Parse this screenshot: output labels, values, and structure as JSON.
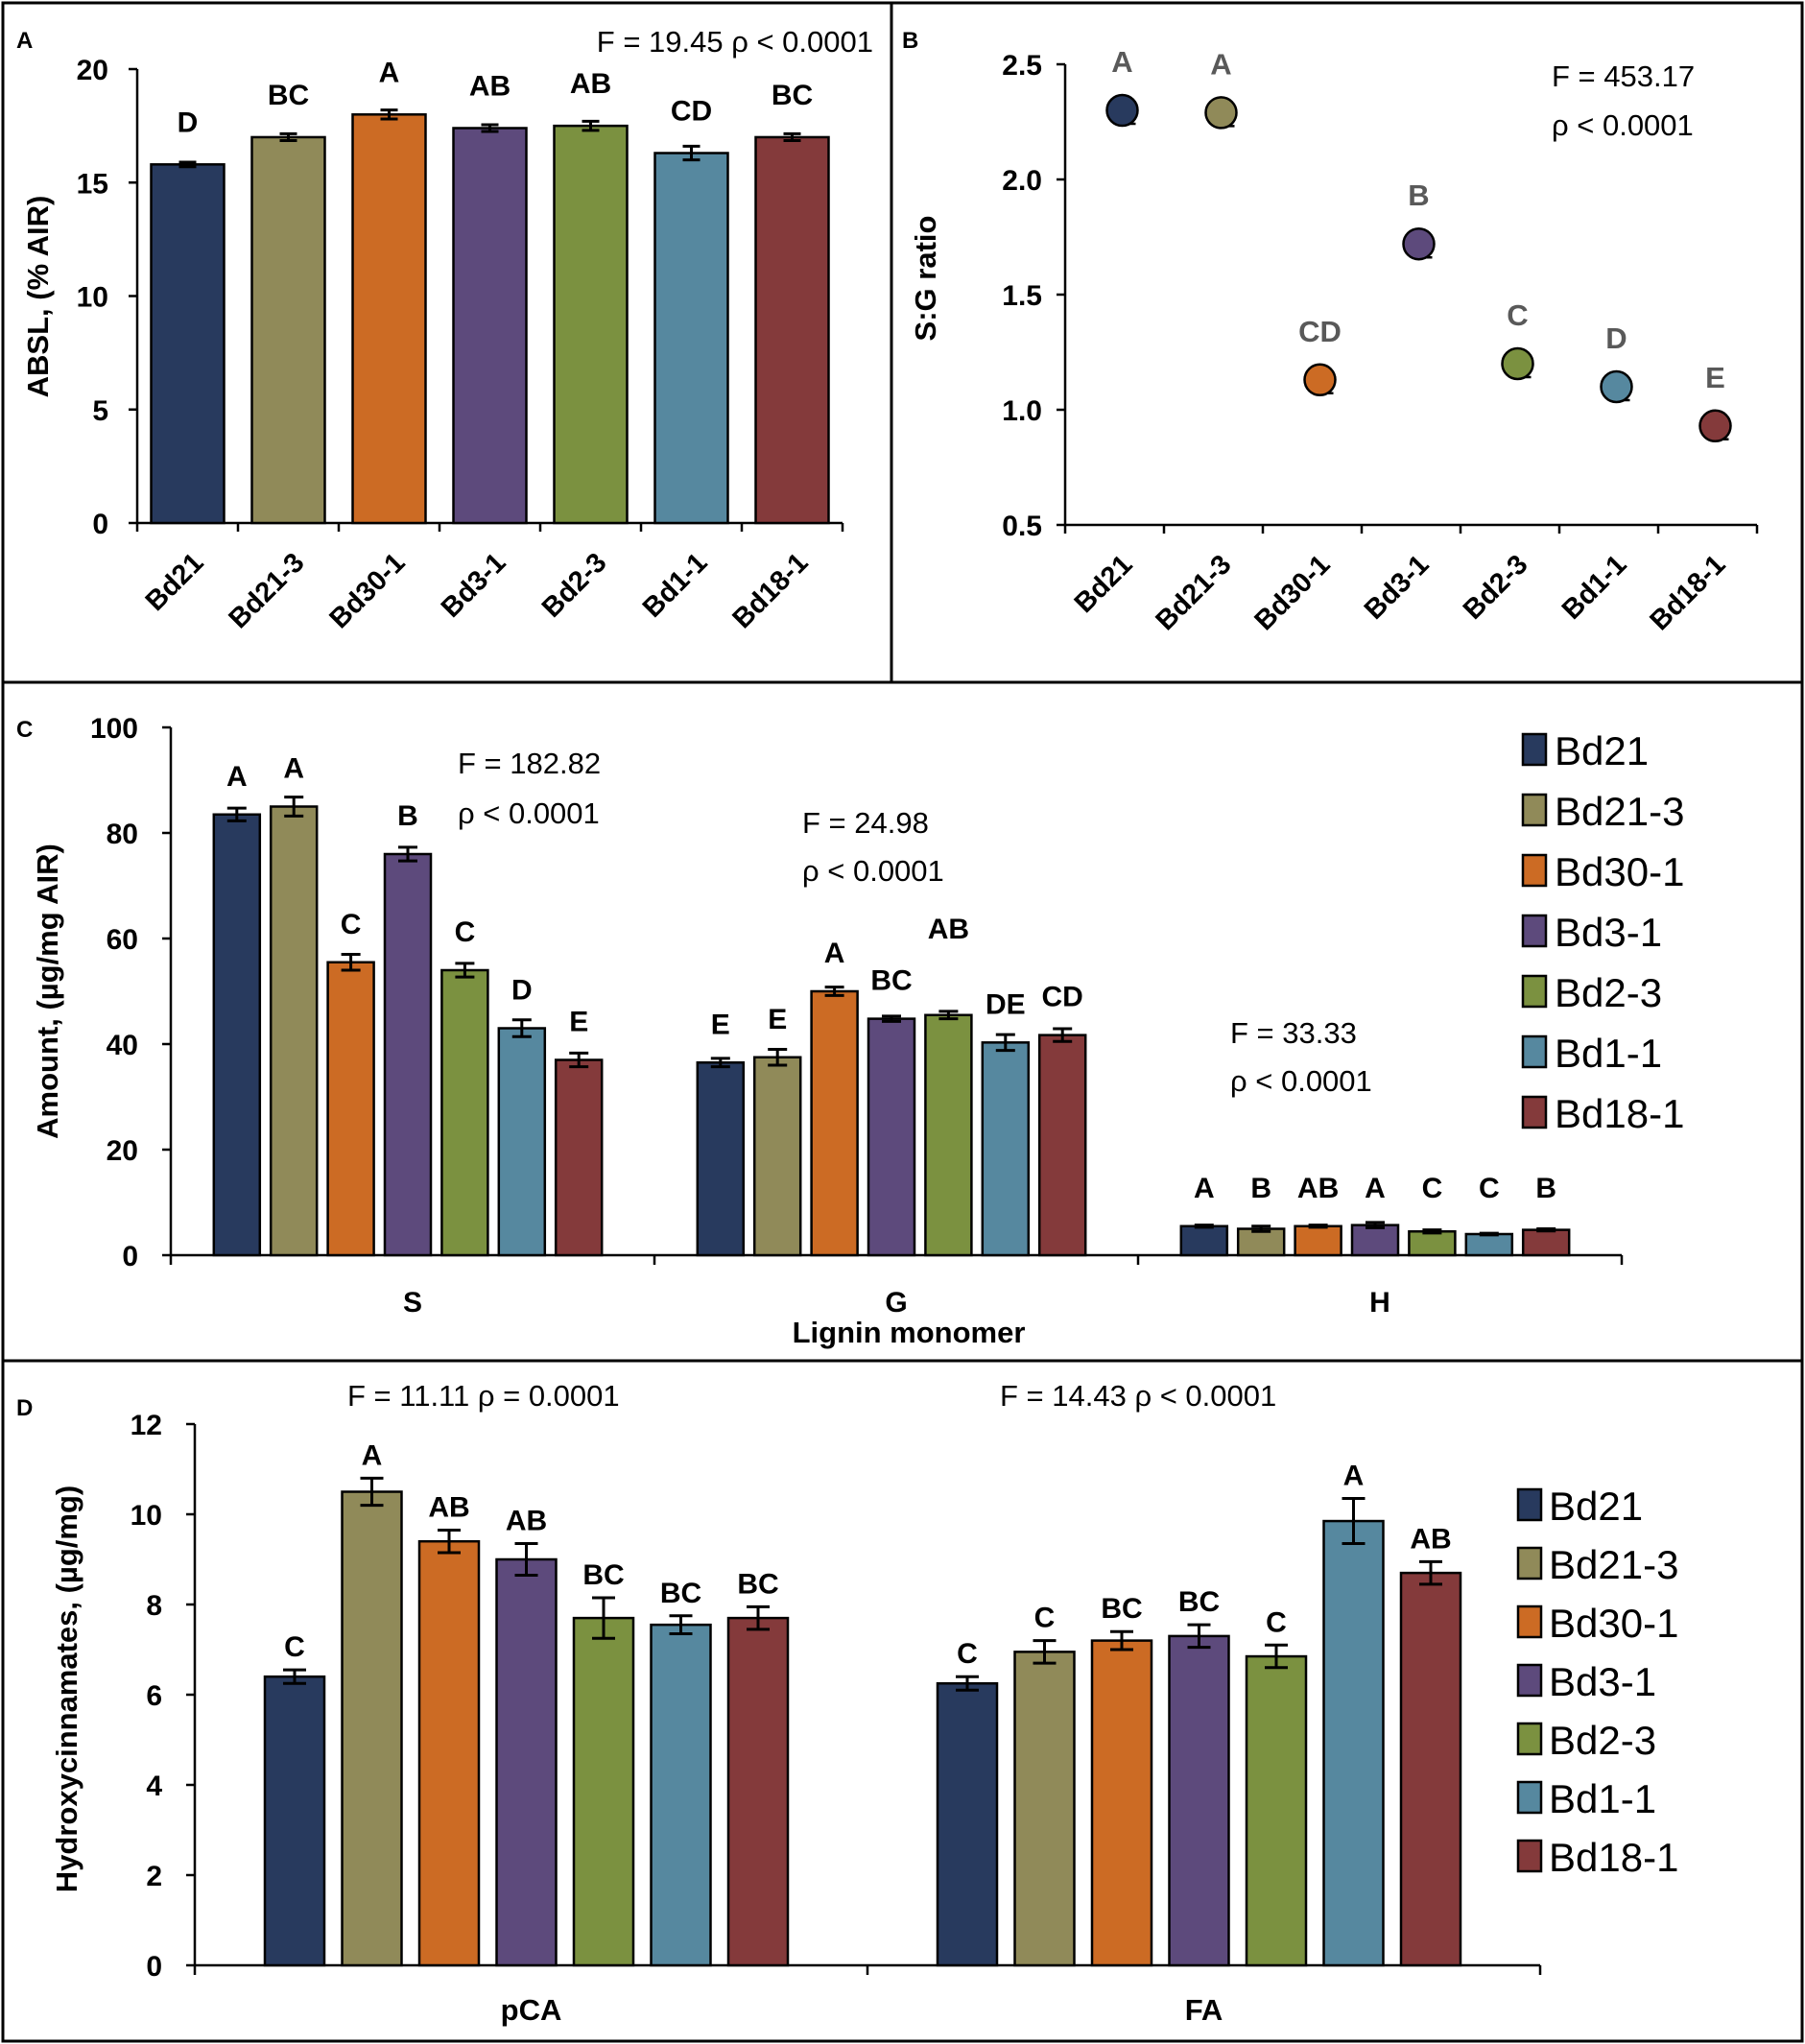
{
  "colors": {
    "Bd21": "#283a5e",
    "Bd21-3": "#908a59",
    "Bd30-1": "#cc6b24",
    "Bd3-1": "#5d4a7c",
    "Bd2-3": "#7b9140",
    "Bd1-1": "#56889f",
    "Bd18-1": "#843a3b",
    "outline": "#000000",
    "letter_gray": "#595959"
  },
  "legend": [
    "Bd21",
    "Bd21-3",
    "Bd30-1",
    "Bd3-1",
    "Bd2-3",
    "Bd1-1",
    "Bd18-1"
  ],
  "chart_data": [
    {
      "panel": "A",
      "type": "bar",
      "ylabel": "ABSL,  (% AIR)",
      "ylim": [
        0,
        20
      ],
      "yticks": [
        0,
        5,
        10,
        15,
        20
      ],
      "stat": "F =  19.45   ρ <  0.0001",
      "categories": [
        "Bd21",
        "Bd21-3",
        "Bd30-1",
        "Bd3-1",
        "Bd2-3",
        "Bd1-1",
        "Bd18-1"
      ],
      "values": [
        15.8,
        17.0,
        18.0,
        17.4,
        17.5,
        16.3,
        17.0
      ],
      "errors": [
        0.1,
        0.15,
        0.2,
        0.15,
        0.2,
        0.3,
        0.15
      ],
      "letters": [
        "D",
        "BC",
        "A",
        "AB",
        "AB",
        "CD",
        "BC"
      ]
    },
    {
      "panel": "B",
      "type": "scatter",
      "ylabel": "S:G ratio",
      "ylim": [
        0.5,
        2.5
      ],
      "yticks": [
        "0.5",
        "1.0",
        "1.5",
        "2.0",
        "2.5"
      ],
      "stat_lines": [
        "F =  453.17",
        "ρ < 0.0001"
      ],
      "categories": [
        "Bd21",
        "Bd21-3",
        "Bd30-1",
        "Bd3-1",
        "Bd2-3",
        "Bd1-1",
        "Bd18-1"
      ],
      "values": [
        2.3,
        2.29,
        1.13,
        1.72,
        1.2,
        1.1,
        0.93
      ],
      "letters": [
        "A",
        "A",
        "CD",
        "B",
        "C",
        "D",
        "E"
      ]
    },
    {
      "panel": "C",
      "type": "bar",
      "ylabel": "Amount,  (µg/mg AIR)",
      "xlabel": "Lignin  monomer",
      "ylim": [
        0,
        100
      ],
      "yticks": [
        0,
        20,
        40,
        60,
        80,
        100
      ],
      "groups": [
        {
          "name": "S",
          "values": [
            83.5,
            85.0,
            55.5,
            76.0,
            54.0,
            43.0,
            37.0
          ],
          "errors": [
            1.2,
            1.8,
            1.5,
            1.3,
            1.3,
            1.6,
            1.3
          ],
          "letters": [
            "A",
            "A",
            "C",
            "B",
            "C",
            "D",
            "E"
          ],
          "stat_lines": [
            "F =  182.82",
            "ρ < 0.0001"
          ]
        },
        {
          "name": "G",
          "values": [
            36.5,
            37.5,
            50.0,
            44.8,
            45.5,
            40.3,
            41.7
          ],
          "errors": [
            0.8,
            1.5,
            0.8,
            0.5,
            0.7,
            1.5,
            1.2
          ],
          "letters": [
            "E",
            "E",
            "A",
            "BC",
            "AB",
            "DE",
            "CD"
          ],
          "stat_lines": [
            "F =  24.98",
            "ρ < 0.0001"
          ]
        },
        {
          "name": "H",
          "values": [
            5.5,
            5.0,
            5.5,
            5.7,
            4.5,
            4.0,
            4.8
          ],
          "errors": [
            0.2,
            0.5,
            0.2,
            0.5,
            0.3,
            0.15,
            0.2
          ],
          "letters": [
            "A",
            "B",
            "AB",
            "A",
            "C",
            "C",
            "B"
          ],
          "stat_lines": [
            "F =  33.33",
            "ρ < 0.0001"
          ]
        }
      ]
    },
    {
      "panel": "D",
      "type": "bar",
      "ylabel": "Hydroxycinnamates,  (µg/mg)",
      "ylim": [
        0,
        12
      ],
      "yticks": [
        0,
        2,
        4,
        6,
        8,
        10,
        12
      ],
      "groups": [
        {
          "name": "pCA",
          "values": [
            6.4,
            10.5,
            9.4,
            9.0,
            7.7,
            7.55,
            7.7
          ],
          "errors": [
            0.15,
            0.3,
            0.25,
            0.35,
            0.45,
            0.2,
            0.25
          ],
          "letters": [
            "C",
            "A",
            "AB",
            "AB",
            "BC",
            "BC",
            "BC"
          ],
          "stat": "F =  11.11   ρ =  0.0001"
        },
        {
          "name": "FA",
          "values": [
            6.25,
            6.95,
            7.2,
            7.3,
            6.85,
            9.85,
            8.7
          ],
          "errors": [
            0.15,
            0.25,
            0.2,
            0.25,
            0.25,
            0.5,
            0.25
          ],
          "letters": [
            "C",
            "C",
            "BC",
            "BC",
            "C",
            "A",
            "AB"
          ],
          "stat": "F =  14.43   ρ <  0.0001"
        }
      ]
    }
  ]
}
